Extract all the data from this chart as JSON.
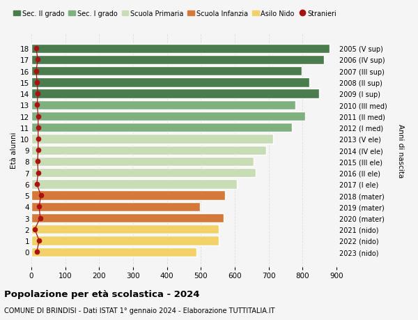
{
  "ages": [
    18,
    17,
    16,
    15,
    14,
    13,
    12,
    11,
    10,
    9,
    8,
    7,
    6,
    5,
    4,
    3,
    2,
    1,
    0
  ],
  "right_labels": [
    "2005 (V sup)",
    "2006 (IV sup)",
    "2007 (III sup)",
    "2008 (II sup)",
    "2009 (I sup)",
    "2010 (III med)",
    "2011 (II med)",
    "2012 (I med)",
    "2013 (V ele)",
    "2014 (IV ele)",
    "2015 (III ele)",
    "2016 (II ele)",
    "2017 (I ele)",
    "2018 (mater)",
    "2019 (mater)",
    "2020 (mater)",
    "2021 (nido)",
    "2022 (nido)",
    "2023 (nido)"
  ],
  "bar_values": [
    880,
    862,
    798,
    820,
    848,
    778,
    808,
    768,
    712,
    692,
    655,
    662,
    607,
    572,
    497,
    568,
    553,
    553,
    487
  ],
  "stranieri_values": [
    14,
    19,
    14,
    17,
    19,
    17,
    20,
    20,
    20,
    20,
    18,
    20,
    16,
    28,
    23,
    26,
    10,
    23,
    16
  ],
  "bar_colors": [
    "#4a7c4e",
    "#4a7c4e",
    "#4a7c4e",
    "#4a7c4e",
    "#4a7c4e",
    "#7fb07f",
    "#7fb07f",
    "#7fb07f",
    "#c8ddb5",
    "#c8ddb5",
    "#c8ddb5",
    "#c8ddb5",
    "#c8ddb5",
    "#d4793a",
    "#d4793a",
    "#d4793a",
    "#f2d16b",
    "#f2d16b",
    "#f2d16b"
  ],
  "legend_labels": [
    "Sec. II grado",
    "Sec. I grado",
    "Scuola Primaria",
    "Scuola Infanzia",
    "Asilo Nido",
    "Stranieri"
  ],
  "legend_colors": [
    "#4a7c4e",
    "#7fb07f",
    "#c8ddb5",
    "#d4793a",
    "#f2d16b",
    "#cc1111"
  ],
  "stranieri_color": "#aa1111",
  "ylabel": "Età alunni",
  "right_ylabel": "Anni di nascita",
  "xlim": [
    0,
    900
  ],
  "xticks": [
    0,
    100,
    200,
    300,
    400,
    500,
    600,
    700,
    800,
    900
  ],
  "title": "Popolazione per età scolastica - 2024",
  "subtitle": "COMUNE DI BRINDISI - Dati ISTAT 1° gennaio 2024 - Elaborazione TUTTITALIA.IT",
  "bg_color": "#f5f5f5",
  "grid_color": "#d8d8d8"
}
